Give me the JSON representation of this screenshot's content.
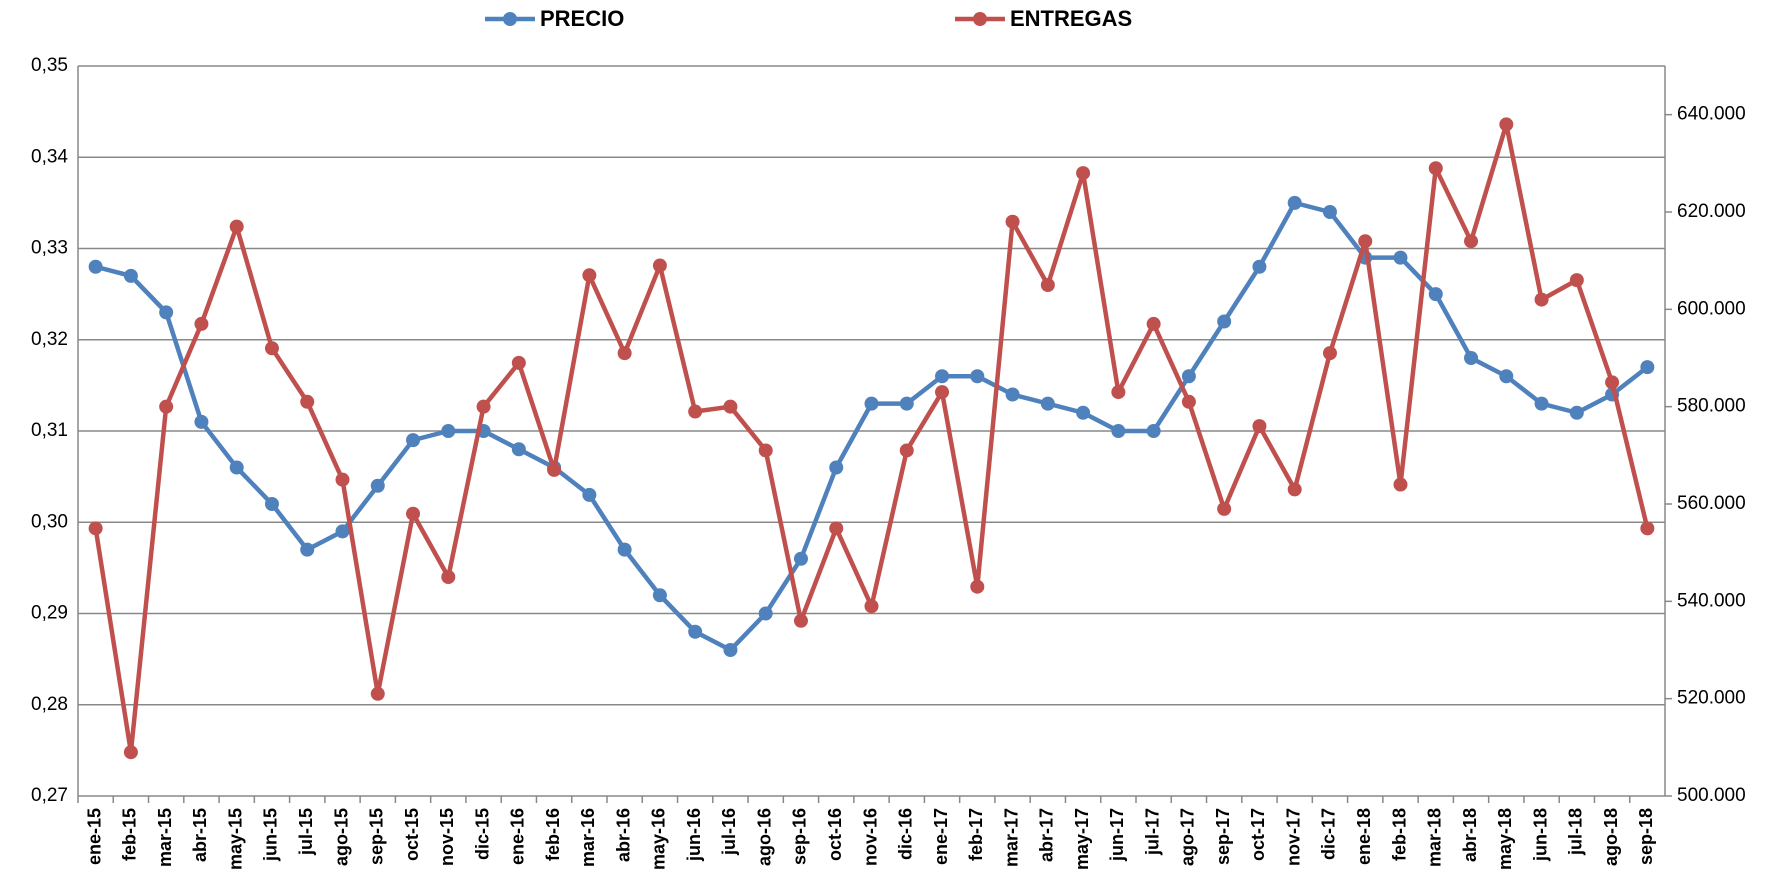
{
  "chart_data": {
    "type": "line",
    "categories": [
      "ene-15",
      "feb-15",
      "mar-15",
      "abr-15",
      "may-15",
      "jun-15",
      "jul-15",
      "ago-15",
      "sep-15",
      "oct-15",
      "nov-15",
      "dic-15",
      "ene-16",
      "feb-16",
      "mar-16",
      "abr-16",
      "may-16",
      "jun-16",
      "jul-16",
      "ago-16",
      "sep-16",
      "oct-16",
      "nov-16",
      "dic-16",
      "ene-17",
      "feb-17",
      "mar-17",
      "abr-17",
      "may-17",
      "jun-17",
      "jul-17",
      "ago-17",
      "sep-17",
      "oct-17",
      "nov-17",
      "dic-17",
      "ene-18",
      "feb-18",
      "mar-18",
      "abr-18",
      "may-18",
      "jun-18",
      "jul-18",
      "ago-18",
      "sep-18"
    ],
    "series": [
      {
        "name": "PRECIO",
        "color": "#4f81bd",
        "values": [
          0.328,
          0.327,
          0.323,
          0.311,
          0.306,
          0.302,
          0.297,
          0.299,
          0.304,
          0.309,
          0.31,
          0.31,
          0.308,
          0.306,
          0.303,
          0.297,
          0.292,
          0.288,
          0.286,
          0.29,
          0.296,
          0.306,
          0.313,
          0.313,
          0.316,
          0.316,
          0.314,
          0.313,
          0.312,
          0.31,
          0.31,
          0.316,
          0.322,
          0.328,
          0.335,
          0.334,
          0.329,
          0.329,
          0.325,
          0.318,
          0.316,
          0.313,
          0.312,
          0.314,
          0.317
        ]
      },
      {
        "name": "ENTREGAS",
        "color": "#c0504d",
        "axis": "y2",
        "values": [
          555000,
          509000,
          580000,
          597000,
          617000,
          592000,
          581000,
          565000,
          521000,
          558000,
          545000,
          580000,
          589000,
          567000,
          607000,
          591000,
          609000,
          579000,
          580000,
          571000,
          536000,
          555000,
          539000,
          571000,
          583000,
          543000,
          618000,
          605000,
          628000,
          583000,
          597000,
          581000,
          559000,
          576000,
          563000,
          591000,
          614000,
          564000,
          629000,
          614000,
          638000,
          602000,
          606000,
          585000,
          555000
        ]
      }
    ],
    "ylim": [
      0.27,
      0.35
    ],
    "yticks": [
      {
        "value": 0.27,
        "label": "0,27"
      },
      {
        "value": 0.28,
        "label": "0,28"
      },
      {
        "value": 0.29,
        "label": "0,29"
      },
      {
        "value": 0.3,
        "label": "0,30"
      },
      {
        "value": 0.31,
        "label": "0,31"
      },
      {
        "value": 0.32,
        "label": "0,32"
      },
      {
        "value": 0.33,
        "label": "0,33"
      },
      {
        "value": 0.34,
        "label": "0,34"
      },
      {
        "value": 0.35,
        "label": "0,35"
      }
    ],
    "y2lim": [
      500000,
      650000
    ],
    "y2ticks": [
      {
        "value": 500000,
        "label": "500.000"
      },
      {
        "value": 520000,
        "label": "520.000"
      },
      {
        "value": 540000,
        "label": "540.000"
      },
      {
        "value": 560000,
        "label": "560.000"
      },
      {
        "value": 580000,
        "label": "580.000"
      },
      {
        "value": 600000,
        "label": "600.000"
      },
      {
        "value": 620000,
        "label": "620.000"
      },
      {
        "value": 640000,
        "label": "640.000"
      }
    ],
    "grid": true,
    "legend": "top"
  }
}
